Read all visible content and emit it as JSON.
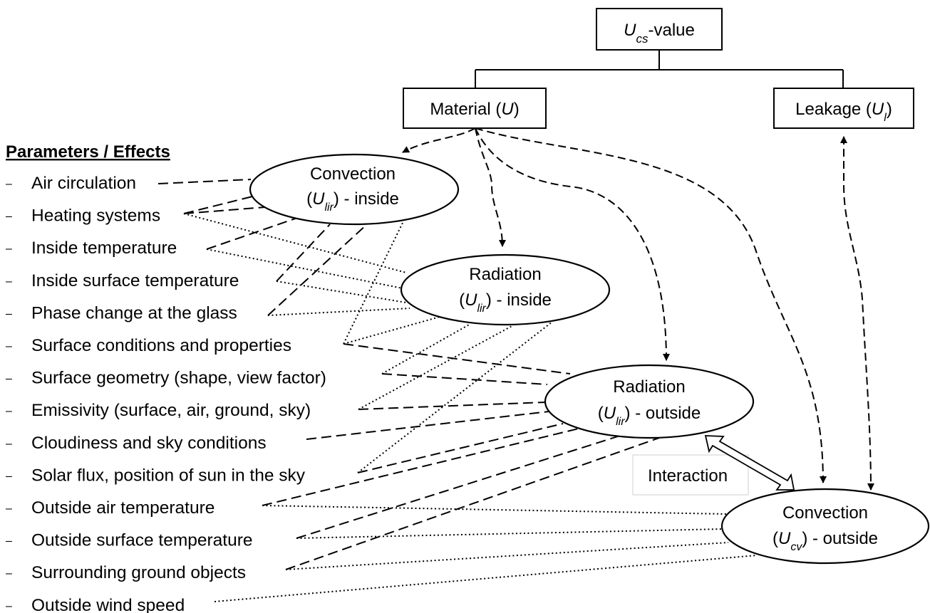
{
  "nodes": {
    "ucs": {
      "symbol": "U",
      "sub": "cs",
      "suffix": "-value"
    },
    "material": {
      "prefix": "Material (",
      "symbol": "U",
      "sub": "",
      "suffix": ")"
    },
    "leakage": {
      "prefix": "Leakage (",
      "symbol": "U",
      "sub": "l",
      "suffix": ")"
    },
    "conv_in": {
      "line1": "Convection",
      "open": "(",
      "symbol": "U",
      "sub": "lir",
      "suffix": ") - inside"
    },
    "rad_in": {
      "line1": "Radiation",
      "open": "(",
      "symbol": "U",
      "sub": "lir",
      "suffix": ") - inside"
    },
    "rad_out": {
      "line1": "Radiation",
      "open": "(",
      "symbol": "U",
      "sub": "lir",
      "suffix": ") - outside"
    },
    "conv_out": {
      "line1": "Convection",
      "open": "(",
      "symbol": "U",
      "sub": "cv",
      "suffix": ") - outside"
    }
  },
  "interaction_label": "Interaction",
  "parameters": {
    "heading": "Parameters / Effects",
    "bullet": "–",
    "items": [
      "Air circulation",
      "Heating systems",
      "Inside temperature",
      "Inside surface temperature",
      "Phase change at the glass",
      "Surface conditions and properties",
      "Surface geometry (shape, view factor)",
      "Emissivity (surface, air, ground, sky)",
      "Cloudiness and sky conditions",
      "Solar flux, position of sun in the sky",
      "Outside air temperature",
      "Outside surface temperature",
      "Surrounding ground objects",
      "Outside wind speed"
    ]
  }
}
